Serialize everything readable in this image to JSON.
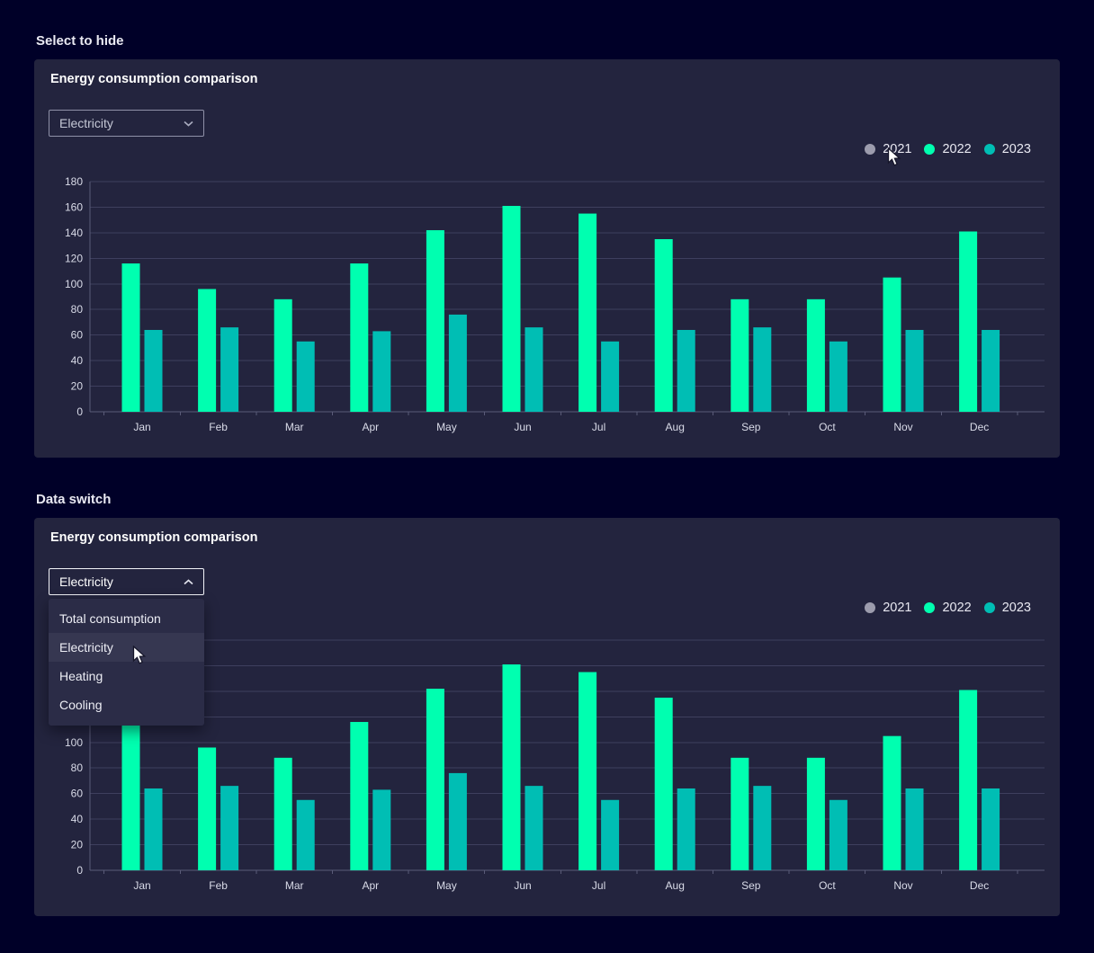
{
  "page": {
    "background": "#000028",
    "card_background": "#23243E"
  },
  "sections": [
    {
      "heading": "Select to hide",
      "card_title": "Energy consumption comparison",
      "select": {
        "value": "Electricity",
        "expanded": false
      }
    },
    {
      "heading": "Data switch",
      "card_title": "Energy consumption comparison",
      "select": {
        "value": "Electricity",
        "expanded": true
      },
      "menu": {
        "options": [
          "Total consumption",
          "Electricity",
          "Heating",
          "Cooling"
        ],
        "highlighted": "Electricity"
      }
    }
  ],
  "legend": {
    "items": [
      {
        "label": "2021",
        "color": "#9C9CAD",
        "active": false
      },
      {
        "label": "2022",
        "color": "#00FFB0",
        "active": true
      },
      {
        "label": "2023",
        "color": "#00BEB4",
        "active": true
      }
    ]
  },
  "chart_colors": {
    "grid": "#3E3F5E",
    "axis": "#5A5B78",
    "tick_label": "#D9DBE8"
  },
  "chart_data": [
    {
      "type": "bar",
      "title": "Energy consumption comparison",
      "categories": [
        "Jan",
        "Feb",
        "Mar",
        "Apr",
        "May",
        "Jun",
        "Jul",
        "Aug",
        "Sep",
        "Oct",
        "Nov",
        "Dec"
      ],
      "series": [
        {
          "name": "2021",
          "color": "#9C9CAD",
          "visible": false,
          "values": []
        },
        {
          "name": "2022",
          "color": "#00FFB0",
          "visible": true,
          "values": [
            116,
            96,
            88,
            116,
            142,
            161,
            155,
            135,
            88,
            88,
            105,
            141
          ]
        },
        {
          "name": "2023",
          "color": "#00BEB4",
          "visible": true,
          "values": [
            64,
            66,
            55,
            63,
            76,
            66,
            55,
            64,
            66,
            55,
            64,
            64
          ]
        }
      ],
      "xlabel": "",
      "ylabel": "",
      "ylim": [
        0,
        180
      ],
      "ytick_step": 20,
      "grid": true,
      "legend_position": "top-right"
    },
    {
      "type": "bar",
      "title": "Energy consumption comparison",
      "categories": [
        "Jan",
        "Feb",
        "Mar",
        "Apr",
        "May",
        "Jun",
        "Jul",
        "Aug",
        "Sep",
        "Oct",
        "Nov",
        "Dec"
      ],
      "series": [
        {
          "name": "2021",
          "color": "#9C9CAD",
          "visible": false,
          "values": []
        },
        {
          "name": "2022",
          "color": "#00FFB0",
          "visible": true,
          "values": [
            116,
            96,
            88,
            116,
            142,
            161,
            155,
            135,
            88,
            88,
            105,
            141
          ]
        },
        {
          "name": "2023",
          "color": "#00BEB4",
          "visible": true,
          "values": [
            64,
            66,
            55,
            63,
            76,
            66,
            55,
            64,
            66,
            55,
            64,
            64
          ]
        }
      ],
      "xlabel": "",
      "ylabel": "",
      "ylim": [
        0,
        180
      ],
      "ytick_step": 20,
      "grid": true,
      "legend_position": "top-right"
    }
  ]
}
